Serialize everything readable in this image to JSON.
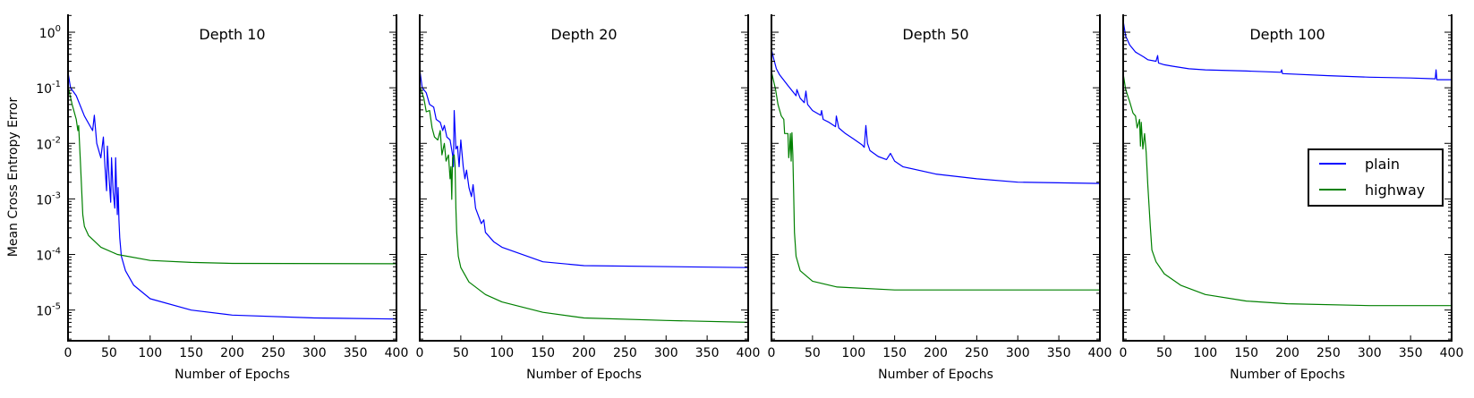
{
  "chart_data": {
    "type": "line",
    "ylabel": "Mean Cross Entropy Error",
    "xlabel": "Number of Epochs",
    "y_scale": "log",
    "ylim": [
      2.8e-06,
      2.1
    ],
    "xlim": [
      0,
      400
    ],
    "x_ticks": [
      0,
      50,
      100,
      150,
      200,
      250,
      300,
      350,
      400
    ],
    "y_ticks": [
      {
        "base": "10",
        "exp": "0"
      },
      {
        "base": "10",
        "exp": "-1"
      },
      {
        "base": "10",
        "exp": "-2"
      },
      {
        "base": "10",
        "exp": "-3"
      },
      {
        "base": "10",
        "exp": "-4"
      },
      {
        "base": "10",
        "exp": "-5"
      }
    ],
    "y_tick_values": [
      1,
      0.1,
      0.01,
      0.001,
      0.0001,
      1e-05
    ],
    "grid": false,
    "legend": {
      "placement": "right",
      "panel": 3,
      "entries": [
        "plain",
        "highway"
      ]
    },
    "colors": {
      "plain": "#0000ff",
      "highway": "#008000"
    },
    "panels": [
      {
        "title": "Depth 10",
        "series": [
          {
            "name": "plain",
            "points": [
              [
                0,
                0.19
              ],
              [
                3,
                0.1
              ],
              [
                10,
                0.072
              ],
              [
                20,
                0.031
              ],
              [
                30,
                0.017
              ],
              [
                32,
                0.032
              ],
              [
                35,
                0.01
              ],
              [
                40,
                0.0055
              ],
              [
                43,
                0.013
              ],
              [
                45,
                0.0038
              ],
              [
                47,
                0.0014
              ],
              [
                48,
                0.0089
              ],
              [
                50,
                0.0023
              ],
              [
                52,
                0.00087
              ],
              [
                53,
                0.0055
              ],
              [
                55,
                0.0013
              ],
              [
                57,
                0.00068
              ],
              [
                58,
                0.0055
              ],
              [
                60,
                0.00052
              ],
              [
                61,
                0.0016
              ],
              [
                62,
                0.00042
              ],
              [
                63,
                0.0002
              ],
              [
                65,
                9.3e-05
              ],
              [
                70,
                5.1e-05
              ],
              [
                80,
                2.8e-05
              ],
              [
                100,
                1.6e-05
              ],
              [
                150,
                1e-05
              ],
              [
                200,
                8.1e-06
              ],
              [
                300,
                7.2e-06
              ],
              [
                400,
                6.9e-06
              ]
            ]
          },
          {
            "name": "highway",
            "points": [
              [
                0,
                0.105
              ],
              [
                5,
                0.05
              ],
              [
                10,
                0.027
              ],
              [
                12,
                0.017
              ],
              [
                13,
                0.021
              ],
              [
                15,
                0.0048
              ],
              [
                17,
                0.0011
              ],
              [
                18,
                0.00052
              ],
              [
                20,
                0.00032
              ],
              [
                25,
                0.00022
              ],
              [
                40,
                0.000135
              ],
              [
                60,
                0.0001
              ],
              [
                100,
                7.8e-05
              ],
              [
                150,
                7.2e-05
              ],
              [
                200,
                6.9e-05
              ],
              [
                400,
                6.8e-05
              ]
            ]
          }
        ]
      },
      {
        "title": "Depth 20",
        "series": [
          {
            "name": "plain",
            "points": [
              [
                0,
                0.21
              ],
              [
                3,
                0.1
              ],
              [
                8,
                0.081
              ],
              [
                12,
                0.05
              ],
              [
                17,
                0.045
              ],
              [
                20,
                0.027
              ],
              [
                25,
                0.024
              ],
              [
                28,
                0.017
              ],
              [
                30,
                0.021
              ],
              [
                33,
                0.013
              ],
              [
                37,
                0.0115
              ],
              [
                40,
                0.0062
              ],
              [
                41,
                0.0038
              ],
              [
                42,
                0.039
              ],
              [
                44,
                0.0079
              ],
              [
                46,
                0.0089
              ],
              [
                48,
                0.0038
              ],
              [
                50,
                0.0115
              ],
              [
                53,
                0.0038
              ],
              [
                55,
                0.0023
              ],
              [
                57,
                0.0033
              ],
              [
                60,
                0.0016
              ],
              [
                63,
                0.0011
              ],
              [
                65,
                0.0018
              ],
              [
                68,
                0.00068
              ],
              [
                75,
                0.00036
              ],
              [
                78,
                0.00042
              ],
              [
                80,
                0.00025
              ],
              [
                90,
                0.00017
              ],
              [
                100,
                0.000135
              ],
              [
                150,
                7.4e-05
              ],
              [
                200,
                6.3e-05
              ],
              [
                400,
                5.8e-05
              ]
            ]
          },
          {
            "name": "highway",
            "points": [
              [
                0,
                0.105
              ],
              [
                5,
                0.065
              ],
              [
                8,
                0.037
              ],
              [
                12,
                0.039
              ],
              [
                15,
                0.019
              ],
              [
                18,
                0.013
              ],
              [
                22,
                0.0115
              ],
              [
                25,
                0.017
              ],
              [
                27,
                0.0062
              ],
              [
                30,
                0.01
              ],
              [
                32,
                0.0048
              ],
              [
                35,
                0.0062
              ],
              [
                37,
                0.0023
              ],
              [
                38,
                0.0038
              ],
              [
                39,
                0.00098
              ],
              [
                40,
                0.0055
              ],
              [
                42,
                0.0062
              ],
              [
                43,
                0.0038
              ],
              [
                44,
                0.00068
              ],
              [
                45,
                0.00025
              ],
              [
                47,
                9.3e-05
              ],
              [
                50,
                5.8e-05
              ],
              [
                60,
                3.2e-05
              ],
              [
                80,
                1.9e-05
              ],
              [
                100,
                1.4e-05
              ],
              [
                150,
                9.1e-06
              ],
              [
                200,
                7.2e-06
              ],
              [
                300,
                6.5e-06
              ],
              [
                400,
                6e-06
              ]
            ]
          }
        ]
      },
      {
        "title": "Depth 50",
        "series": [
          {
            "name": "plain",
            "points": [
              [
                0,
                0.49
              ],
              [
                3,
                0.32
              ],
              [
                6,
                0.22
              ],
              [
                10,
                0.17
              ],
              [
                20,
                0.11
              ],
              [
                30,
                0.072
              ],
              [
                31,
                0.093
              ],
              [
                35,
                0.065
              ],
              [
                40,
                0.054
              ],
              [
                42,
                0.087
              ],
              [
                44,
                0.05
              ],
              [
                50,
                0.039
              ],
              [
                60,
                0.032
              ],
              [
                61,
                0.039
              ],
              [
                63,
                0.027
              ],
              [
                70,
                0.024
              ],
              [
                78,
                0.02
              ],
              [
                79,
                0.031
              ],
              [
                82,
                0.019
              ],
              [
                90,
                0.015
              ],
              [
                100,
                0.012
              ],
              [
                110,
                0.0095
              ],
              [
                113,
                0.0085
              ],
              [
                115,
                0.021
              ],
              [
                117,
                0.01
              ],
              [
                120,
                0.0074
              ],
              [
                130,
                0.0058
              ],
              [
                140,
                0.0051
              ],
              [
                145,
                0.0066
              ],
              [
                150,
                0.0048
              ],
              [
                160,
                0.0038
              ],
              [
                200,
                0.0028
              ],
              [
                250,
                0.0023
              ],
              [
                300,
                0.002
              ],
              [
                400,
                0.0019
              ]
            ]
          },
          {
            "name": "highway",
            "points": [
              [
                0,
                0.195
              ],
              [
                5,
                0.093
              ],
              [
                8,
                0.05
              ],
              [
                12,
                0.031
              ],
              [
                15,
                0.027
              ],
              [
                16,
                0.015
              ],
              [
                20,
                0.015
              ],
              [
                21,
                0.0055
              ],
              [
                22,
                0.0079
              ],
              [
                23,
                0.015
              ],
              [
                24,
                0.0048
              ],
              [
                25,
                0.0155
              ],
              [
                26,
                0.0062
              ],
              [
                27,
                0.0013
              ],
              [
                28,
                0.00025
              ],
              [
                30,
                9.3e-05
              ],
              [
                35,
                5.1e-05
              ],
              [
                50,
                3.3e-05
              ],
              [
                80,
                2.6e-05
              ],
              [
                150,
                2.3e-05
              ],
              [
                400,
                2.3e-05
              ]
            ]
          }
        ]
      },
      {
        "title": "Depth 100",
        "series": [
          {
            "name": "plain",
            "points": [
              [
                0,
                1.6
              ],
              [
                3,
                0.85
              ],
              [
                8,
                0.59
              ],
              [
                15,
                0.44
              ],
              [
                25,
                0.36
              ],
              [
                30,
                0.32
              ],
              [
                40,
                0.3
              ],
              [
                42,
                0.38
              ],
              [
                43,
                0.28
              ],
              [
                50,
                0.26
              ],
              [
                60,
                0.245
              ],
              [
                80,
                0.22
              ],
              [
                100,
                0.21
              ],
              [
                150,
                0.2
              ],
              [
                192,
                0.19
              ],
              [
                193,
                0.21
              ],
              [
                194,
                0.18
              ],
              [
                250,
                0.165
              ],
              [
                300,
                0.155
              ],
              [
                350,
                0.15
              ],
              [
                380,
                0.145
              ],
              [
                381,
                0.21
              ],
              [
                382,
                0.14
              ],
              [
                400,
                0.14
              ]
            ]
          },
          {
            "name": "highway",
            "points": [
              [
                0,
                0.18
              ],
              [
                3,
                0.093
              ],
              [
                8,
                0.056
              ],
              [
                12,
                0.035
              ],
              [
                15,
                0.031
              ],
              [
                17,
                0.019
              ],
              [
                20,
                0.027
              ],
              [
                21,
                0.0089
              ],
              [
                22,
                0.024
              ],
              [
                24,
                0.0079
              ],
              [
                26,
                0.015
              ],
              [
                28,
                0.0069
              ],
              [
                30,
                0.0018
              ],
              [
                33,
                0.00032
              ],
              [
                35,
                0.00012
              ],
              [
                40,
                7.4e-05
              ],
              [
                50,
                4.5e-05
              ],
              [
                70,
                2.8e-05
              ],
              [
                100,
                1.9e-05
              ],
              [
                150,
                1.45e-05
              ],
              [
                200,
                1.3e-05
              ],
              [
                300,
                1.2e-05
              ],
              [
                400,
                1.2e-05
              ]
            ]
          }
        ]
      }
    ]
  }
}
